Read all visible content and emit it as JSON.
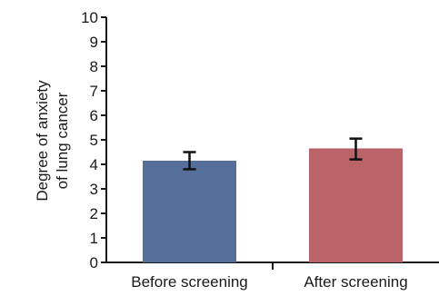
{
  "chart_data": {
    "type": "bar",
    "categories": [
      "Before screening",
      "After screening"
    ],
    "values": [
      4.15,
      4.65
    ],
    "error_bars": [
      {
        "low": 3.8,
        "high": 4.5
      },
      {
        "low": 4.2,
        "high": 5.05
      }
    ],
    "bar_colors": [
      "#566f9a",
      "#b96268"
    ],
    "title": "",
    "xlabel": "",
    "ylabel_lines": [
      "Degree of anxiety",
      "of lung cancer"
    ],
    "ylim": [
      0,
      10
    ],
    "yticks": [
      "0",
      "1",
      "2",
      "3",
      "4",
      "5",
      "6",
      "7",
      "8",
      "9",
      "10"
    ],
    "grid": false,
    "legend": false
  }
}
